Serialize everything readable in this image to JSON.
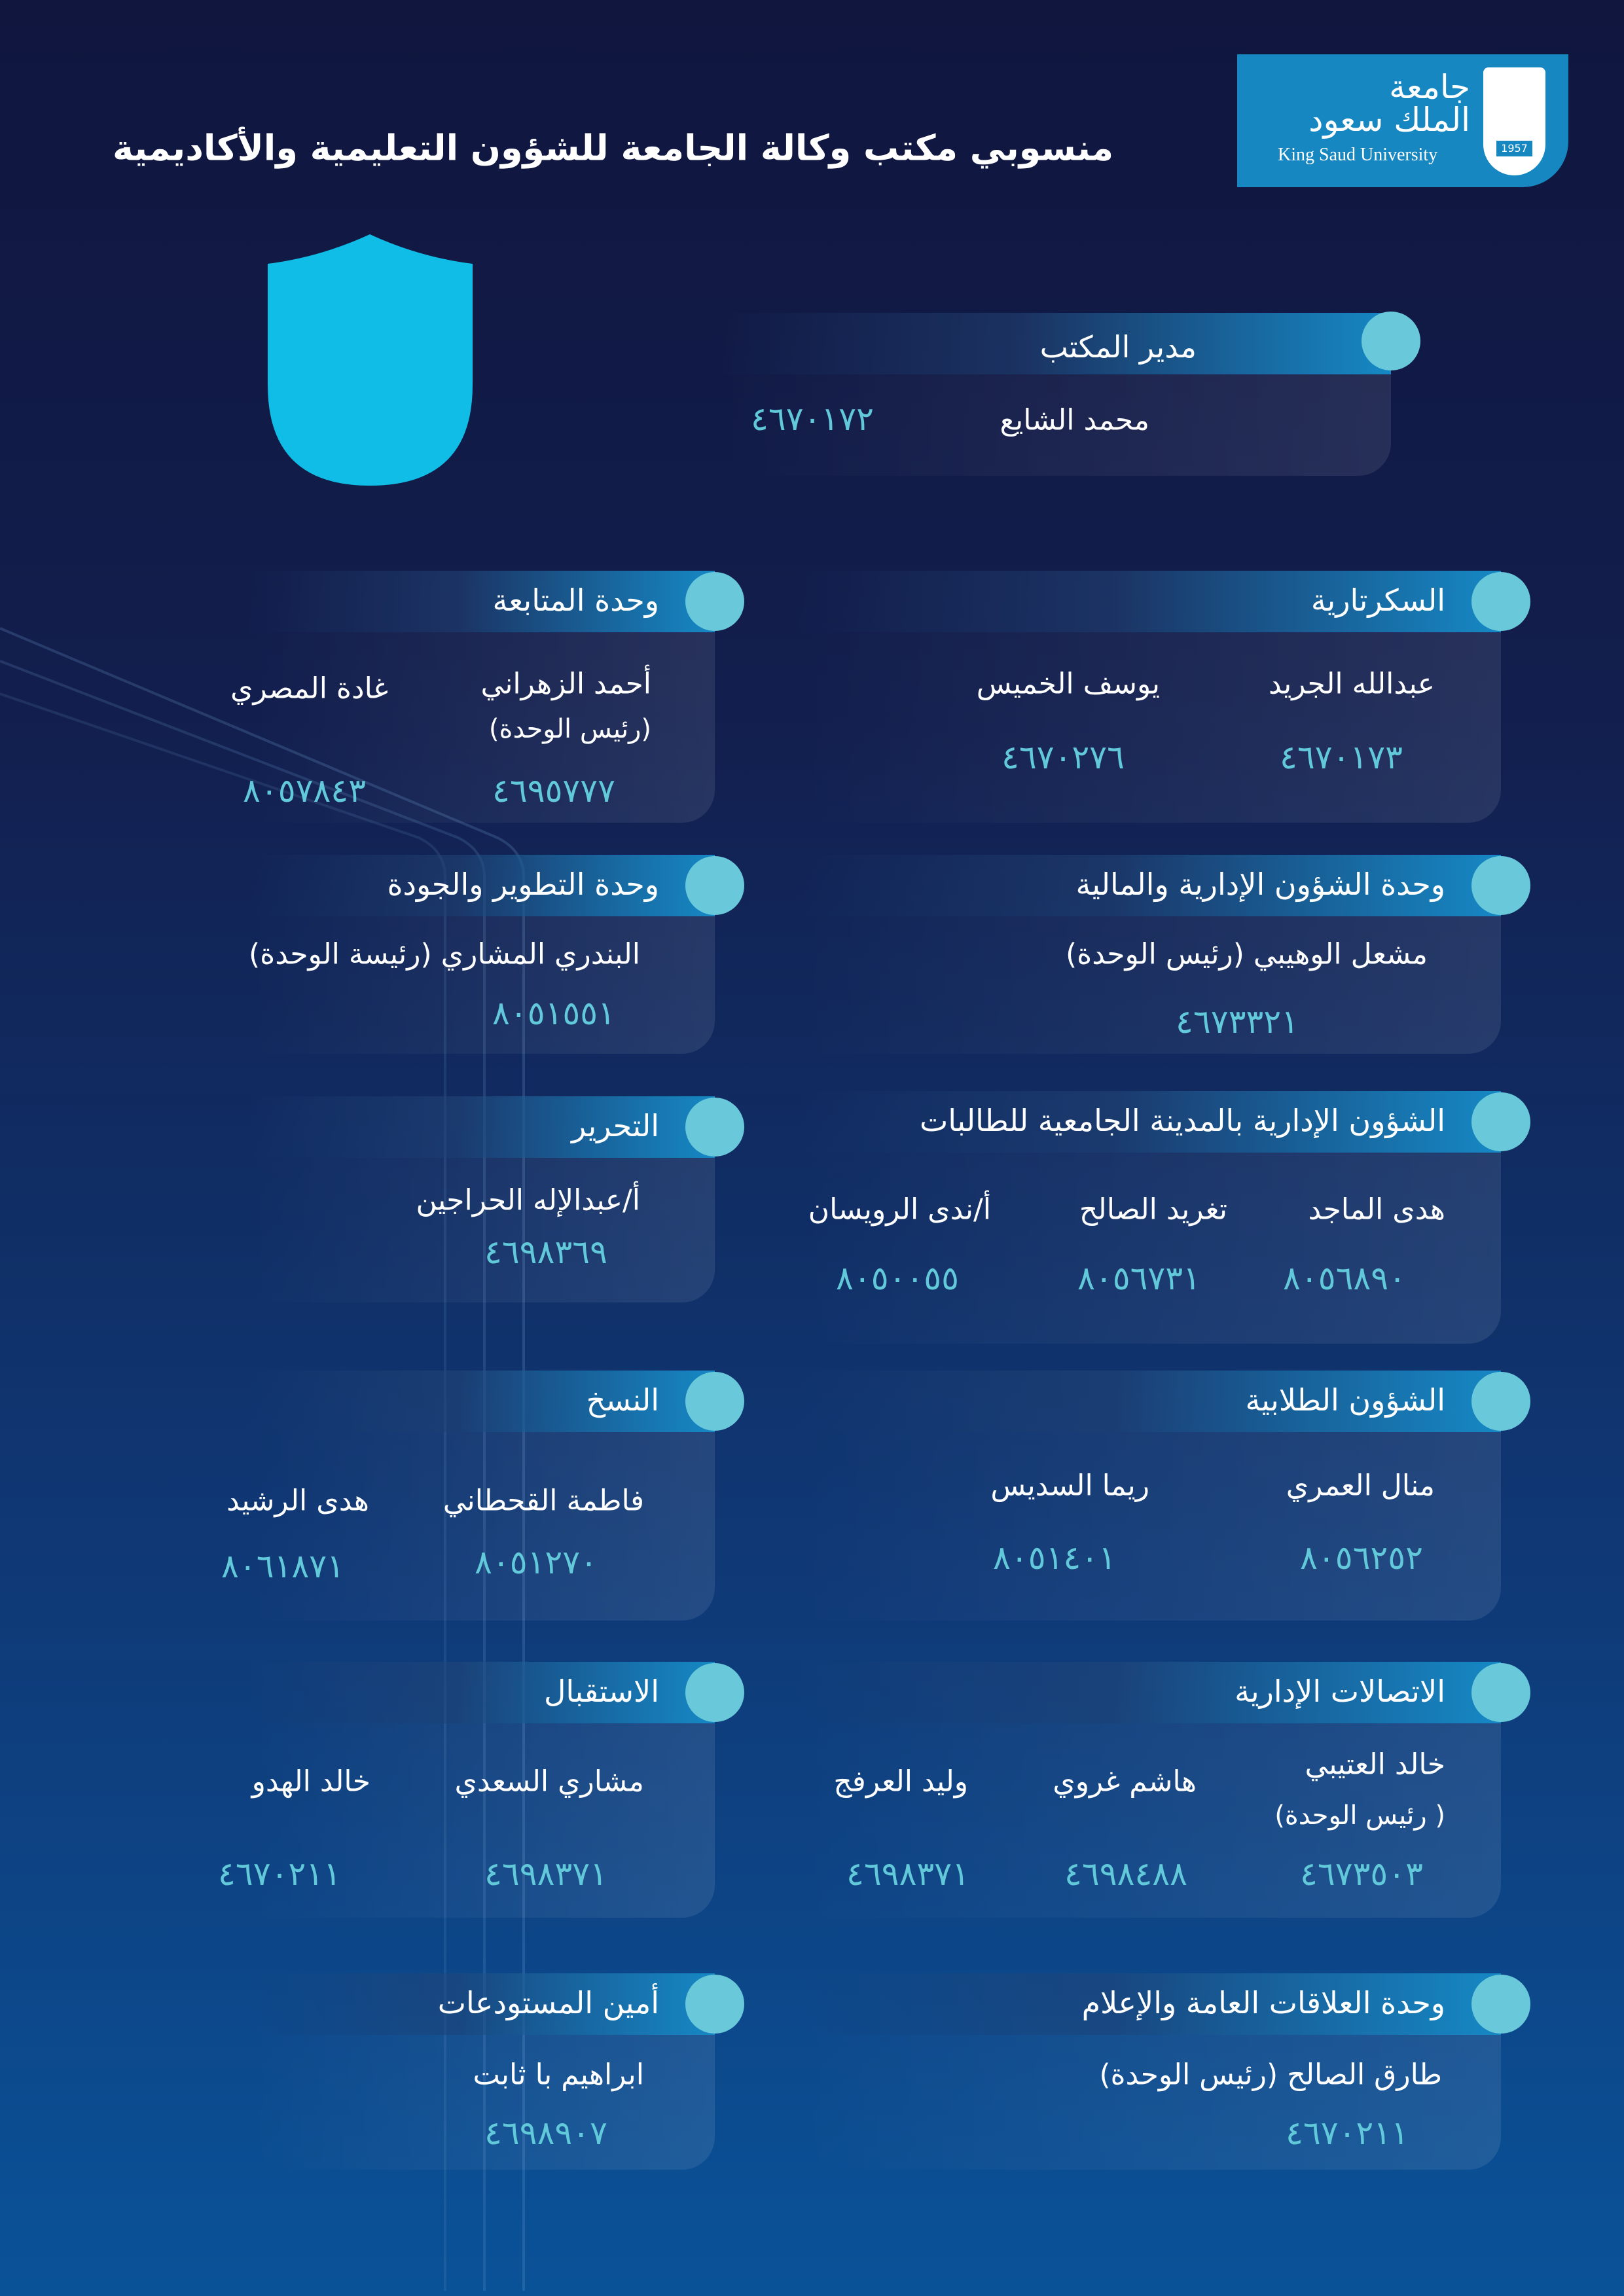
{
  "title": "منسوبي مكتب وكالة الجامعة للشؤون التعليمية والأكاديمية",
  "logo": {
    "arabic_line1": "جامعة",
    "arabic_line2": "الملك سعود",
    "english": "King Saud University",
    "year": "1957",
    "color": "#1787c2"
  },
  "colors": {
    "accent": "#69c9da",
    "number": "#62c9da",
    "header_blue": "#1688c4"
  },
  "director": {
    "title": "مدير المكتب",
    "name": "محمد الشايع",
    "phone": "٤٦٧٠١٧٢"
  },
  "units": [
    {
      "title": "السكرتارية",
      "members": [
        {
          "name": "عبدالله الجريد",
          "phone": "٤٦٧٠١٧٣"
        },
        {
          "name": "يوسف الخميس",
          "phone": "٤٦٧٠٢٧٦"
        }
      ]
    },
    {
      "title": "وحدة المتابعة",
      "members": [
        {
          "name": "أحمد الزهراني",
          "role": "(رئيس الوحدة)",
          "phone": "٤٦٩٥٧٧٧"
        },
        {
          "name": "غادة المصري",
          "phone": "٨٠٥٧٨٤٣"
        }
      ]
    },
    {
      "title": "وحدة الشؤون الإدارية والمالية",
      "members": [
        {
          "name": "مشعل الوهيبي (رئيس الوحدة)",
          "phone": "٤٦٧٣٣٢١"
        }
      ]
    },
    {
      "title": "وحدة التطوير والجودة",
      "members": [
        {
          "name": "البندري المشاري (رئيسة الوحدة)",
          "phone": "٨٠٥١٥٥١"
        }
      ]
    },
    {
      "title": "الشؤون الإدارية بالمدينة الجامعية للطالبات",
      "members": [
        {
          "name": "هدى الماجد",
          "phone": "٨٠٥٦٨٩٠"
        },
        {
          "name": "تغريد الصالح",
          "phone": "٨٠٥٦٧٣١"
        },
        {
          "name": "أ/ندى الرويسان",
          "phone": "٨٠٥٠٠٥٥"
        }
      ]
    },
    {
      "title": "التحرير",
      "members": [
        {
          "name": "أ/عبدالإله الحراجين",
          "phone": "٤٦٩٨٣٦٩"
        }
      ]
    },
    {
      "title": "الشؤون الطلابية",
      "members": [
        {
          "name": "منال العمري",
          "phone": "٨٠٥٦٢٥٢"
        },
        {
          "name": "ريما السديس",
          "phone": "٨٠٥١٤٠١"
        }
      ]
    },
    {
      "title": "النسخ",
      "members": [
        {
          "name": "فاطمة القحطاني",
          "phone": "٨٠٥١٢٧٠"
        },
        {
          "name": "هدى الرشيد",
          "phone": "٨٠٦١٨٧١"
        }
      ]
    },
    {
      "title": "الاتصالات الإدارية",
      "members": [
        {
          "name": "خالد العتيبي",
          "role": "( رئيس الوحدة)",
          "phone": "٤٦٧٣٥٠٣"
        },
        {
          "name": "هاشم غروي",
          "phone": "٤٦٩٨٤٨٨"
        },
        {
          "name": "وليد العرفج",
          "phone": "٤٦٩٨٣٧١"
        }
      ]
    },
    {
      "title": "الاستقبال",
      "members": [
        {
          "name": "مشاري السعدي",
          "phone": "٤٦٩٨٣٧١"
        },
        {
          "name": "خالد الهدو",
          "phone": "٤٦٧٠٢١١"
        }
      ]
    },
    {
      "title": "وحدة العلاقات العامة والإعلام",
      "members": [
        {
          "name": "طارق الصالح  (رئيس الوحدة)",
          "phone": "٤٦٧٠٢١١"
        }
      ]
    },
    {
      "title": "أمين المستودعات",
      "members": [
        {
          "name": "ابراهيم با ثابت",
          "phone": "٤٦٩٨٩٠٧"
        }
      ]
    }
  ]
}
